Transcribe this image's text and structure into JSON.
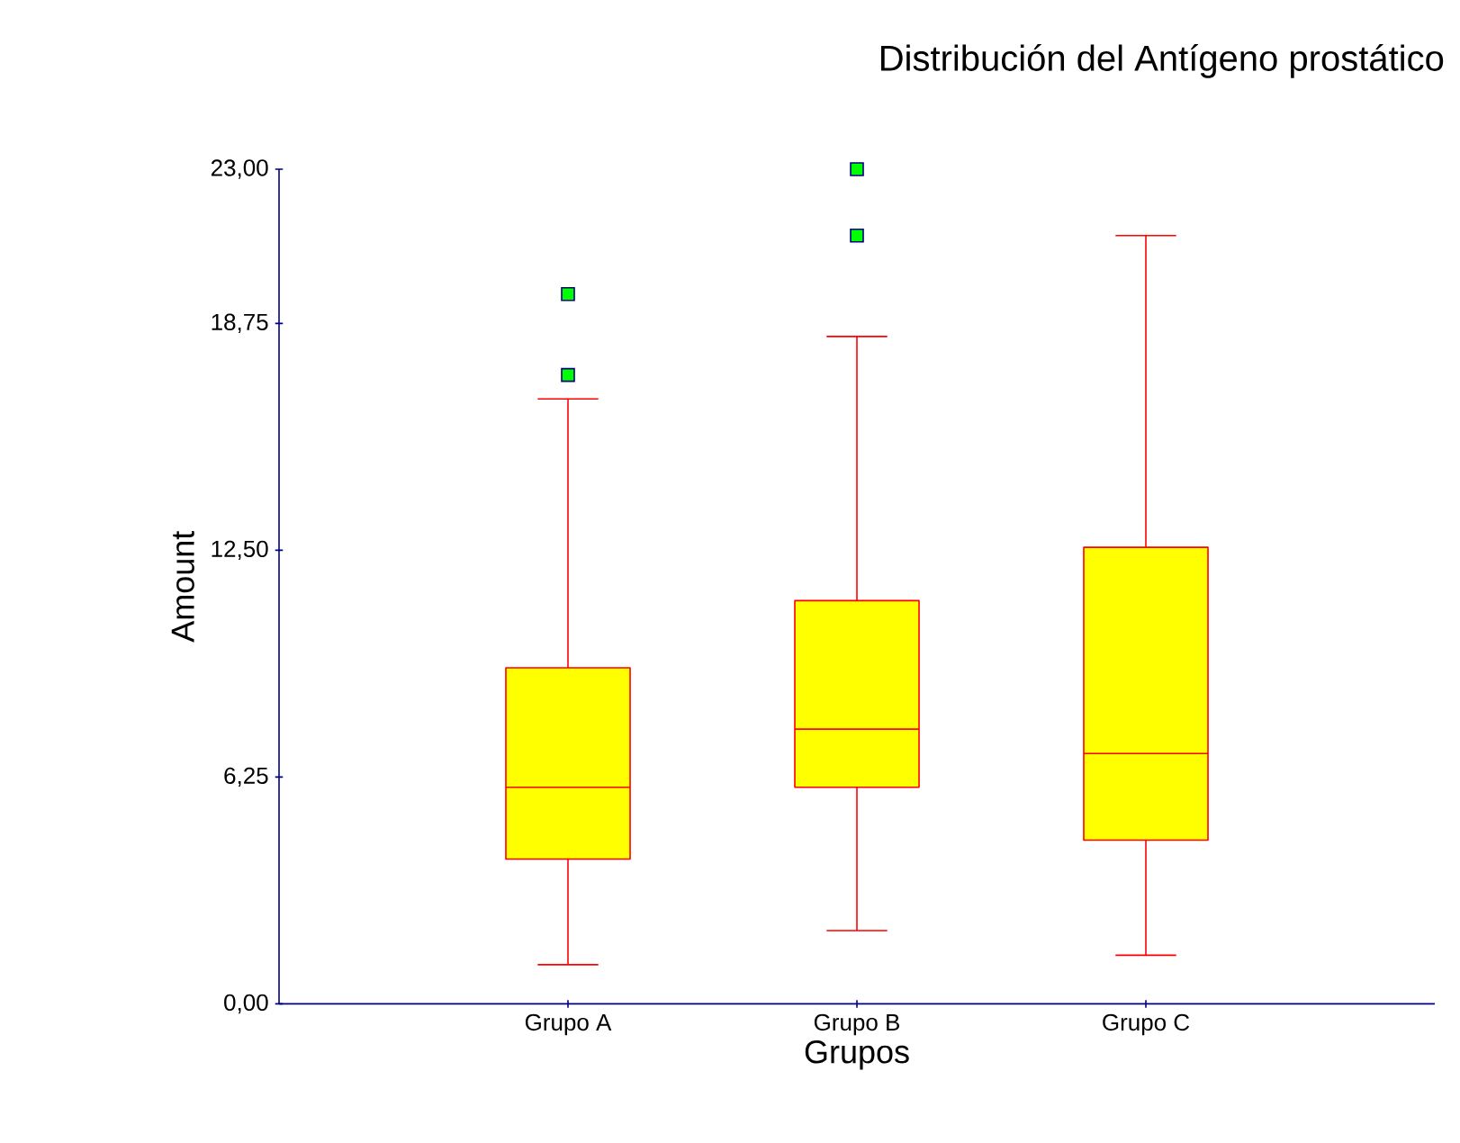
{
  "chart_data": {
    "type": "box",
    "title": "Distribución del Antígeno prostático",
    "xlabel": "Grupos",
    "ylabel": "Amount",
    "categories": [
      "Grupo A",
      "Grupo B",
      "Grupo C"
    ],
    "ylim": [
      0,
      23
    ],
    "yticks": [
      {
        "value": 0,
        "label": "0,00"
      },
      {
        "value": 6.25,
        "label": "6,25"
      },
      {
        "value": 12.5,
        "label": "12,50"
      },
      {
        "value": 18.75,
        "label": "18,75"
      },
      {
        "value": 23,
        "label": "23,00"
      }
    ],
    "marker": "square",
    "series": [
      {
        "color": "#ffff00",
        "boxes": [
          {
            "low": 1.08,
            "q1": 3.99,
            "median": 5.97,
            "q3": 9.26,
            "high": 16.67,
            "outliers": [
              17.33,
              19.56
            ]
          },
          {
            "low": 2.02,
            "q1": 5.97,
            "median": 7.57,
            "q3": 11.11,
            "high": 18.39,
            "outliers": [
              21.17,
              23.0
            ]
          },
          {
            "low": 1.34,
            "q1": 4.51,
            "median": 6.9,
            "q3": 12.58,
            "high": 21.17
          }
        ]
      }
    ]
  }
}
